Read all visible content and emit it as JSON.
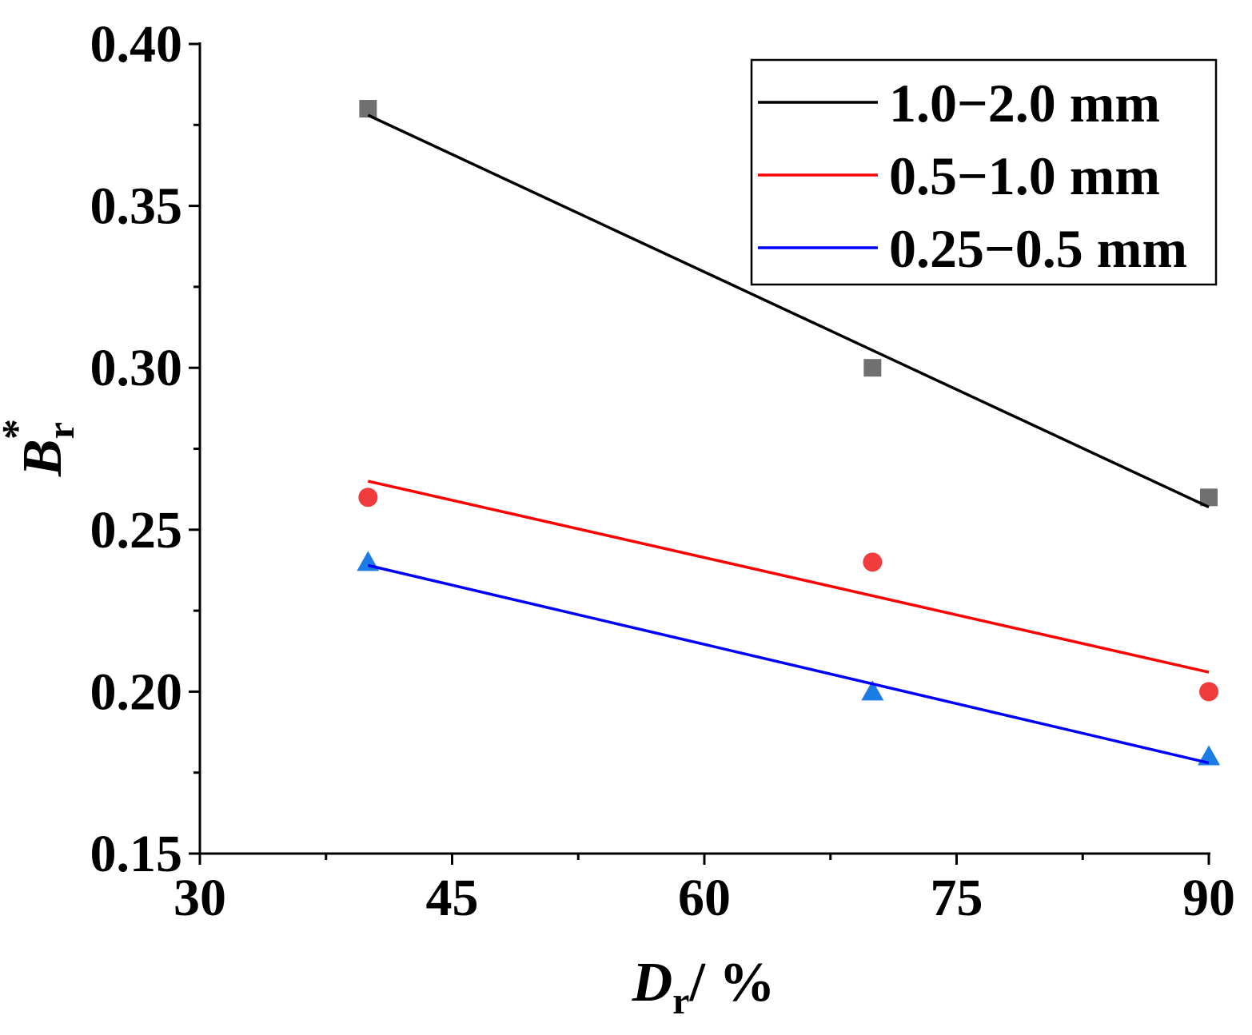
{
  "chart_data": {
    "type": "scatter",
    "title": "",
    "xlabel": {
      "main": "D",
      "sub": "r",
      "suffix": "/ %"
    },
    "ylabel": {
      "main": "B",
      "sub": "r",
      "sup": "*"
    },
    "xlim": [
      30,
      90
    ],
    "ylim": [
      0.15,
      0.4
    ],
    "xticks": [
      {
        "value": 30,
        "label": "30"
      },
      {
        "value": 45,
        "label": "45"
      },
      {
        "value": 60,
        "label": "60"
      },
      {
        "value": 75,
        "label": "75"
      },
      {
        "value": 90,
        "label": "90"
      }
    ],
    "xminor": [
      37.5,
      52.5,
      67.5,
      82.5
    ],
    "yticks": [
      {
        "value": 0.15,
        "label": "0.15"
      },
      {
        "value": 0.2,
        "label": "0.20"
      },
      {
        "value": 0.25,
        "label": "0.25"
      },
      {
        "value": 0.3,
        "label": "0.30"
      },
      {
        "value": 0.35,
        "label": "0.35"
      },
      {
        "value": 0.4,
        "label": "0.40"
      }
    ],
    "yminor": [
      0.175,
      0.225,
      0.275,
      0.325,
      0.375
    ],
    "legend_position": "top-right",
    "grid": false,
    "series": [
      {
        "name": "1.0−2.0 mm",
        "marker": "square",
        "marker_color": "#707070",
        "line_color": "#000000",
        "x": [
          40,
          70,
          90
        ],
        "y": [
          0.38,
          0.3,
          0.26
        ],
        "fit": {
          "x": [
            40,
            90
          ],
          "y": [
            0.378,
            0.257
          ]
        }
      },
      {
        "name": "0.5−1.0 mm",
        "marker": "circle",
        "marker_color": "#f03c3c",
        "line_color": "#ff0000",
        "x": [
          40,
          70,
          90
        ],
        "y": [
          0.26,
          0.24,
          0.2
        ],
        "fit": {
          "x": [
            40,
            90
          ],
          "y": [
            0.265,
            0.206
          ]
        }
      },
      {
        "name": "0.25−0.5 mm",
        "marker": "triangle",
        "marker_color": "#1c7ce6",
        "line_color": "#0000ff",
        "x": [
          40,
          70,
          90
        ],
        "y": [
          0.24,
          0.2,
          0.18
        ],
        "fit": {
          "x": [
            40,
            90
          ],
          "y": [
            0.239,
            0.178
          ]
        }
      }
    ]
  }
}
